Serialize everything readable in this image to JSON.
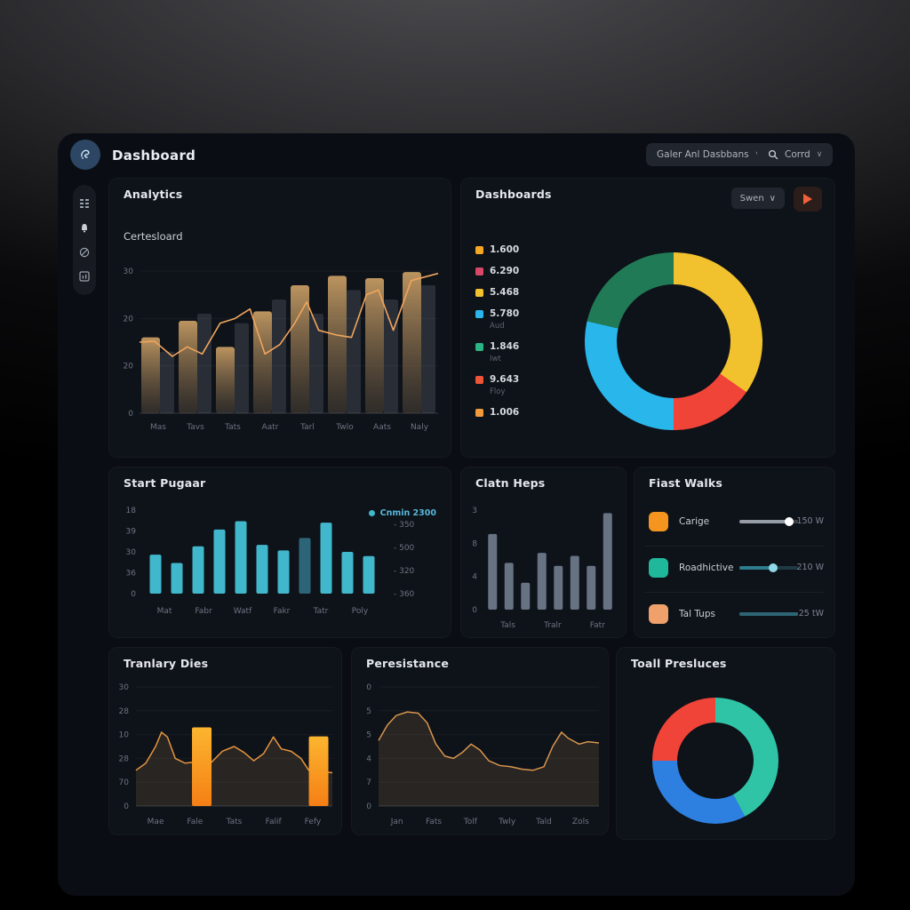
{
  "app": {
    "title": "Dashboard"
  },
  "header": {
    "nav_dropdown_label": "Galer Anl Dasbbans",
    "search_dropdown_label": "Corrd",
    "caret": "∨"
  },
  "sidebar": {
    "icons": [
      "grid-icon",
      "bell-icon",
      "compass-icon",
      "chart-box-icon"
    ]
  },
  "cards": {
    "analytics": {
      "title": "Analytics",
      "subtitle": "Certesloard",
      "chart_data": {
        "type": "bar+line",
        "y_ticks": [
          "30",
          "20",
          "20",
          "0"
        ],
        "x_labels": [
          "Mas",
          "Tavs",
          "Tats",
          "Aatr",
          "Tarl",
          "Twlo",
          "Aats",
          "Naly"
        ],
        "ymax": 30,
        "bars": [
          16,
          19.5,
          14,
          21.5,
          27,
          29,
          28.5,
          29.8
        ],
        "bars_shadow": [
          13,
          21,
          19,
          24,
          21,
          26,
          24,
          27
        ],
        "line": [
          [
            0,
            15
          ],
          [
            0.05,
            15.2
          ],
          [
            0.11,
            12
          ],
          [
            0.16,
            14
          ],
          [
            0.21,
            12.5
          ],
          [
            0.27,
            19
          ],
          [
            0.32,
            20
          ],
          [
            0.37,
            22
          ],
          [
            0.42,
            12.5
          ],
          [
            0.47,
            14.5
          ],
          [
            0.52,
            19
          ],
          [
            0.56,
            23.5
          ],
          [
            0.6,
            17.5
          ],
          [
            0.66,
            16.5
          ],
          [
            0.71,
            16
          ],
          [
            0.76,
            25
          ],
          [
            0.8,
            26
          ],
          [
            0.85,
            17.5
          ],
          [
            0.91,
            28
          ],
          [
            1,
            29.5
          ]
        ],
        "bar_color_top": "#c59b63",
        "bar_color_bottom": "#4a4136",
        "line_color": "#f0a55e"
      }
    },
    "dashboards": {
      "title": "Dashboards",
      "button_label": "Swen",
      "legend": [
        {
          "color": "#f5a623",
          "value": "1.600",
          "sub": ""
        },
        {
          "color": "#d9486b",
          "value": "6.290",
          "sub": ""
        },
        {
          "color": "#f2c12e",
          "value": "5.468",
          "sub": ""
        },
        {
          "color": "#29b6ea",
          "value": "5.780",
          "sub": "Aud"
        },
        {
          "color": "#2bb585",
          "value": "1.846",
          "sub": "Iwt"
        },
        {
          "color": "#f05438",
          "value": "9.643",
          "sub": "Floy"
        },
        {
          "color": "#f09a3c",
          "value": "1.006",
          "sub": ""
        }
      ],
      "chart_data": {
        "type": "pie",
        "segments": [
          {
            "color": "#f2c12e",
            "pct": 34.7
          },
          {
            "color": "#f04438",
            "pct": 15.3
          },
          {
            "color": "#29b6ea",
            "pct": 28.6
          },
          {
            "color": "#1f7a55",
            "pct": 21.4
          }
        ]
      }
    },
    "start_pugaar": {
      "title": "Start Pugaar",
      "legend_label": "Cnmin 2300",
      "chart_data": {
        "type": "bar",
        "y_ticks_left": [
          "18",
          "39",
          "30",
          "36",
          "0"
        ],
        "y_ticks_right": [
          "350",
          "500",
          "320",
          "360"
        ],
        "x_labels": [
          "Mat",
          "Fabr",
          "Watf",
          "Fakr",
          "Tatr",
          "Poly"
        ],
        "ymax": 30,
        "values": [
          14,
          11,
          17,
          23,
          26,
          17.5,
          15.5,
          20,
          25.5,
          15,
          13.5
        ],
        "bar_color": "#41b7cc",
        "dark_index": 7,
        "dark_color": "#2c6577"
      }
    },
    "clatn_heps": {
      "title": "Clatn Heps",
      "chart_data": {
        "type": "bar",
        "y_ticks": [
          "3",
          "8",
          "4",
          "0"
        ],
        "x_labels": [
          "Tals",
          "Tralr",
          "Fatr"
        ],
        "ymax": 10,
        "values": [
          7.6,
          4.7,
          2.7,
          5.7,
          4.4,
          5.4,
          4.4,
          9.7
        ],
        "bar_color": "#7e8c9e"
      }
    },
    "fiast_walks": {
      "title": "Fiast Walks",
      "rows": [
        {
          "label": "Carige",
          "value": "150 W",
          "icon_color": "#f5941e",
          "track": "#3a3f48",
          "fill": "#959ca6",
          "knob": "#ffffff",
          "progress": 0.85
        },
        {
          "label": "Roadhictive",
          "value": "210 W",
          "icon_color": "#1fb89a",
          "track": "#203a45",
          "fill": "#2d7d8e",
          "knob": "#8fd8e8",
          "progress": 0.58
        },
        {
          "label": "Tal Tups",
          "value": "25 tW",
          "icon_color": "#f0a06a",
          "track": "#2d6575",
          "fill": "#2d6575",
          "knob": "",
          "progress": 1
        }
      ]
    },
    "tranlary_dies": {
      "title": "Tranlary Dies",
      "chart_data": {
        "type": "area+bar",
        "y_ticks": [
          "30",
          "28",
          "10",
          "28",
          "70",
          "0"
        ],
        "x_labels": [
          "Mae",
          "Fale",
          "Tats",
          "Falif",
          "Fefy"
        ],
        "area": [
          [
            0,
            0.3
          ],
          [
            0.05,
            0.36
          ],
          [
            0.1,
            0.5
          ],
          [
            0.13,
            0.62
          ],
          [
            0.16,
            0.58
          ],
          [
            0.2,
            0.4
          ],
          [
            0.25,
            0.36
          ],
          [
            0.3,
            0.37
          ],
          [
            0.33,
            0.33
          ],
          [
            0.38,
            0.36
          ],
          [
            0.44,
            0.46
          ],
          [
            0.5,
            0.5
          ],
          [
            0.55,
            0.45
          ],
          [
            0.6,
            0.38
          ],
          [
            0.65,
            0.44
          ],
          [
            0.7,
            0.58
          ],
          [
            0.74,
            0.48
          ],
          [
            0.79,
            0.46
          ],
          [
            0.84,
            0.4
          ],
          [
            0.88,
            0.3
          ],
          [
            1,
            0.28
          ]
        ],
        "bars": [
          {
            "x": 0.335,
            "h": 0.66
          },
          {
            "x": 0.93,
            "h": 0.585
          }
        ],
        "bar_color_top": "#fcb52f",
        "bar_color_bottom": "#f57f15",
        "line_color": "#e6953f"
      }
    },
    "peresistance": {
      "title": "Peresistance",
      "chart_data": {
        "type": "area",
        "y_ticks": [
          "0",
          "5",
          "5",
          "4",
          "7",
          "0"
        ],
        "x_labels": [
          "Jan",
          "Fats",
          "Tolf",
          "Twly",
          "Tald",
          "Zols"
        ],
        "area": [
          [
            0,
            0.55
          ],
          [
            0.04,
            0.68
          ],
          [
            0.08,
            0.76
          ],
          [
            0.13,
            0.79
          ],
          [
            0.18,
            0.78
          ],
          [
            0.22,
            0.7
          ],
          [
            0.26,
            0.52
          ],
          [
            0.3,
            0.42
          ],
          [
            0.34,
            0.4
          ],
          [
            0.38,
            0.45
          ],
          [
            0.42,
            0.52
          ],
          [
            0.46,
            0.47
          ],
          [
            0.5,
            0.38
          ],
          [
            0.55,
            0.34
          ],
          [
            0.6,
            0.33
          ],
          [
            0.65,
            0.31
          ],
          [
            0.7,
            0.3
          ],
          [
            0.75,
            0.33
          ],
          [
            0.79,
            0.5
          ],
          [
            0.83,
            0.62
          ],
          [
            0.86,
            0.57
          ],
          [
            0.91,
            0.52
          ],
          [
            0.95,
            0.54
          ],
          [
            1,
            0.53
          ]
        ],
        "line_color": "#d8954e"
      }
    },
    "toall_presluces": {
      "title": "Toall Presluces",
      "chart_data": {
        "type": "pie",
        "segments": [
          {
            "color": "#2ec4a5",
            "pct": 42.2
          },
          {
            "color": "#2d7fe0",
            "pct": 32.8
          },
          {
            "color": "#f04438",
            "pct": 25
          }
        ]
      }
    }
  }
}
